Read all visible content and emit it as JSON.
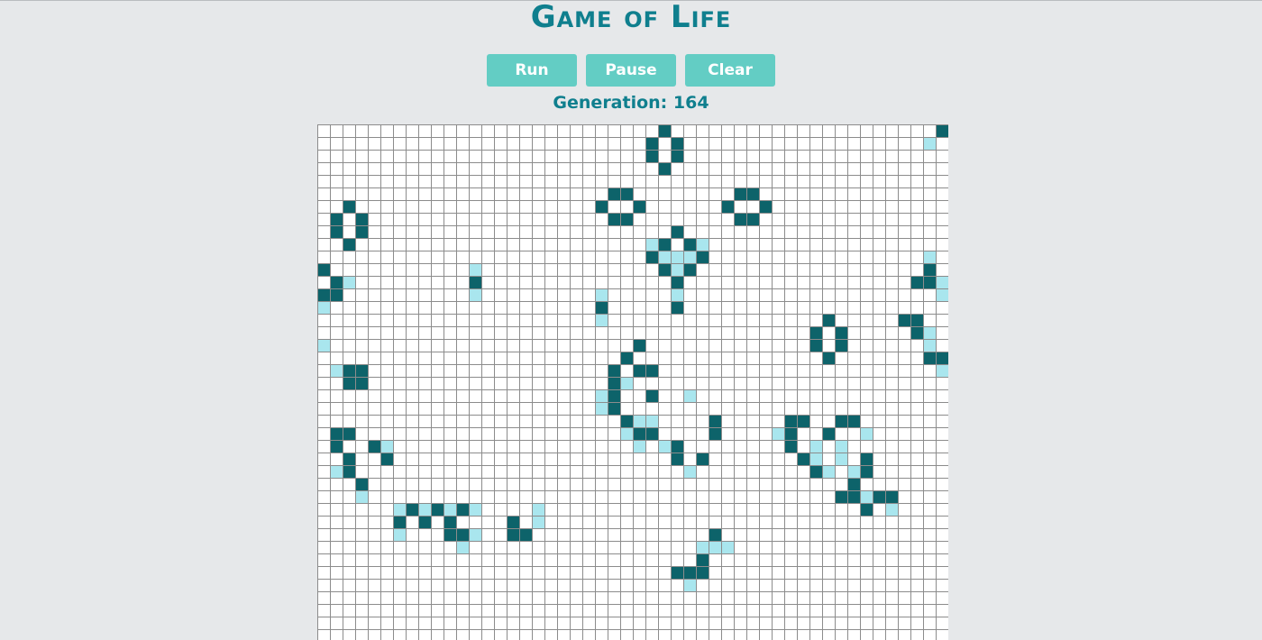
{
  "app": {
    "title": "Game of Life"
  },
  "controls": {
    "run_label": "Run",
    "pause_label": "Pause",
    "clear_label": "Clear"
  },
  "status": {
    "generation_text": "Generation: 164",
    "generation": 164
  },
  "colors": {
    "background": "#e6e8ea",
    "accent": "#0f7f8e",
    "button": "#63cdc4",
    "cell_alive": "#0d636a",
    "cell_new": "#a9e6ee",
    "cell_empty": "#ffffff",
    "grid_line": "#8c8c8c"
  },
  "board": {
    "columns": 50,
    "visible_rows": 41,
    "alive_cells": [
      [
        49,
        0
      ],
      [
        27,
        0
      ],
      [
        27,
        3
      ],
      [
        26,
        1
      ],
      [
        28,
        1
      ],
      [
        26,
        2
      ],
      [
        28,
        2
      ],
      [
        23,
        5
      ],
      [
        24,
        5
      ],
      [
        33,
        5
      ],
      [
        34,
        5
      ],
      [
        22,
        6
      ],
      [
        25,
        6
      ],
      [
        32,
        6
      ],
      [
        35,
        6
      ],
      [
        23,
        7
      ],
      [
        24,
        7
      ],
      [
        33,
        7
      ],
      [
        34,
        7
      ],
      [
        2,
        6
      ],
      [
        1,
        7
      ],
      [
        3,
        7
      ],
      [
        1,
        8
      ],
      [
        3,
        8
      ],
      [
        2,
        9
      ],
      [
        28,
        8
      ],
      [
        27,
        9
      ],
      [
        29,
        9
      ],
      [
        26,
        10
      ],
      [
        30,
        10
      ],
      [
        27,
        11
      ],
      [
        29,
        11
      ],
      [
        28,
        12
      ],
      [
        0,
        11
      ],
      [
        1,
        12
      ],
      [
        0,
        13
      ],
      [
        1,
        13
      ],
      [
        12,
        12
      ],
      [
        22,
        14
      ],
      [
        28,
        14
      ],
      [
        48,
        11
      ],
      [
        47,
        12
      ],
      [
        48,
        12
      ],
      [
        40,
        15
      ],
      [
        39,
        16
      ],
      [
        41,
        16
      ],
      [
        39,
        17
      ],
      [
        41,
        17
      ],
      [
        40,
        18
      ],
      [
        46,
        15
      ],
      [
        47,
        15
      ],
      [
        47,
        16
      ],
      [
        48,
        18
      ],
      [
        49,
        18
      ],
      [
        25,
        17
      ],
      [
        24,
        18
      ],
      [
        2,
        19
      ],
      [
        3,
        19
      ],
      [
        2,
        20
      ],
      [
        3,
        20
      ],
      [
        23,
        19
      ],
      [
        25,
        19
      ],
      [
        26,
        19
      ],
      [
        23,
        20
      ],
      [
        23,
        21
      ],
      [
        26,
        21
      ],
      [
        23,
        22
      ],
      [
        24,
        23
      ],
      [
        25,
        24
      ],
      [
        26,
        24
      ],
      [
        37,
        23
      ],
      [
        38,
        23
      ],
      [
        37,
        24
      ],
      [
        37,
        25
      ],
      [
        38,
        26
      ],
      [
        39,
        27
      ],
      [
        41,
        23
      ],
      [
        42,
        23
      ],
      [
        40,
        24
      ],
      [
        43,
        26
      ],
      [
        43,
        27
      ],
      [
        42,
        28
      ],
      [
        41,
        29
      ],
      [
        42,
        29
      ],
      [
        44,
        29
      ],
      [
        45,
        29
      ],
      [
        43,
        30
      ],
      [
        31,
        23
      ],
      [
        31,
        24
      ],
      [
        28,
        25
      ],
      [
        28,
        26
      ],
      [
        30,
        26
      ],
      [
        1,
        24
      ],
      [
        2,
        24
      ],
      [
        1,
        25
      ],
      [
        4,
        25
      ],
      [
        2,
        26
      ],
      [
        5,
        26
      ],
      [
        2,
        27
      ],
      [
        3,
        28
      ],
      [
        7,
        30
      ],
      [
        9,
        30
      ],
      [
        11,
        30
      ],
      [
        6,
        31
      ],
      [
        8,
        31
      ],
      [
        10,
        31
      ],
      [
        11,
        32
      ],
      [
        10,
        32
      ],
      [
        15,
        31
      ],
      [
        15,
        32
      ],
      [
        16,
        32
      ],
      [
        31,
        32
      ],
      [
        30,
        34
      ],
      [
        28,
        35
      ],
      [
        29,
        35
      ],
      [
        30,
        35
      ]
    ],
    "new_cells": [
      [
        48,
        1
      ],
      [
        27,
        9
      ],
      [
        26,
        9
      ],
      [
        30,
        9
      ],
      [
        28,
        10
      ],
      [
        29,
        10
      ],
      [
        27,
        10
      ],
      [
        28,
        11
      ],
      [
        28,
        13
      ],
      [
        12,
        11
      ],
      [
        12,
        13
      ],
      [
        22,
        13
      ],
      [
        22,
        15
      ],
      [
        28,
        13
      ],
      [
        2,
        12
      ],
      [
        0,
        14
      ],
      [
        0,
        17
      ],
      [
        1,
        19
      ],
      [
        48,
        10
      ],
      [
        47,
        12
      ],
      [
        49,
        12
      ],
      [
        49,
        13
      ],
      [
        48,
        16
      ],
      [
        48,
        17
      ],
      [
        49,
        19
      ],
      [
        25,
        17
      ],
      [
        24,
        18
      ],
      [
        24,
        20
      ],
      [
        22,
        21
      ],
      [
        22,
        22
      ],
      [
        24,
        24
      ],
      [
        25,
        23
      ],
      [
        26,
        23
      ],
      [
        25,
        25
      ],
      [
        29,
        21
      ],
      [
        31,
        23
      ],
      [
        27,
        25
      ],
      [
        29,
        27
      ],
      [
        36,
        24
      ],
      [
        39,
        25
      ],
      [
        39,
        26
      ],
      [
        41,
        25
      ],
      [
        41,
        26
      ],
      [
        40,
        27
      ],
      [
        42,
        27
      ],
      [
        42,
        28
      ],
      [
        43,
        29
      ],
      [
        45,
        30
      ],
      [
        43,
        24
      ],
      [
        43,
        27
      ],
      [
        1,
        24
      ],
      [
        5,
        25
      ],
      [
        1,
        27
      ],
      [
        3,
        29
      ],
      [
        6,
        30
      ],
      [
        8,
        30
      ],
      [
        10,
        30
      ],
      [
        12,
        30
      ],
      [
        6,
        32
      ],
      [
        12,
        32
      ],
      [
        11,
        33
      ],
      [
        17,
        30
      ],
      [
        17,
        31
      ],
      [
        31,
        33
      ],
      [
        32,
        33
      ],
      [
        30,
        33
      ],
      [
        30,
        34
      ],
      [
        29,
        36
      ]
    ]
  }
}
